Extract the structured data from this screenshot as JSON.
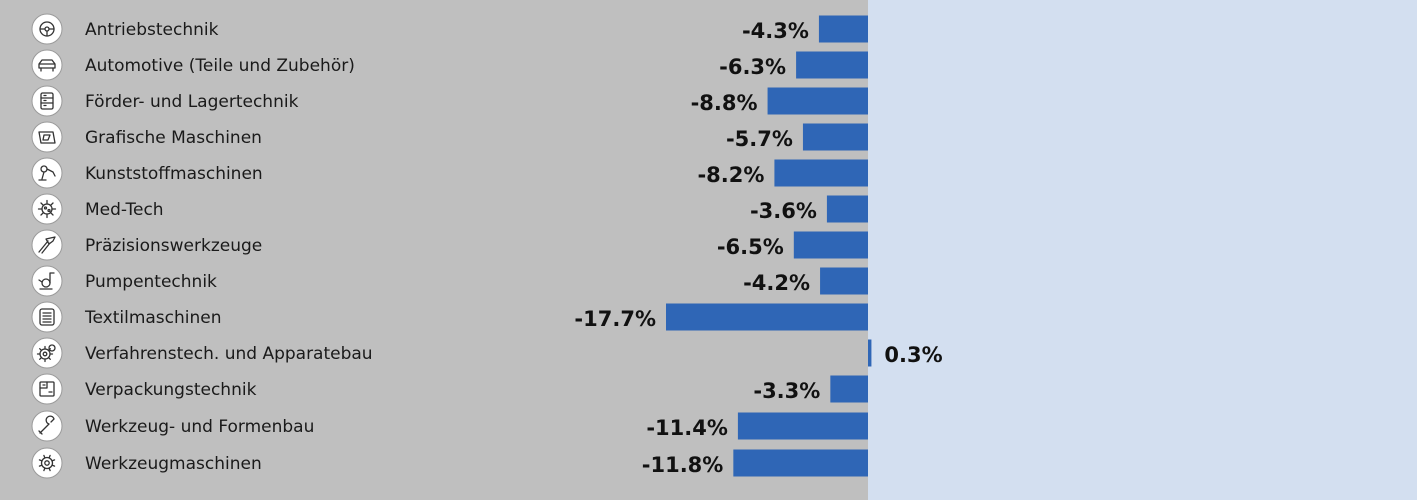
{
  "chart_data": {
    "type": "bar",
    "orientation": "horizontal",
    "categories": [
      "Antriebstechnik",
      "Automotive (Teile und Zubehör)",
      "Förder- und Lagertechnik",
      "Grafische Maschinen",
      "Kunststoffmaschinen",
      "Med-Tech",
      "Präzisionswerkzeuge",
      "Pumpentechnik",
      "Textilmaschinen",
      "Verfahrenstech. und Apparatebau",
      "Verpackungstechnik",
      "Werkzeug- und Formenbau",
      "Werkzeugmaschinen"
    ],
    "values": [
      -4.3,
      -6.3,
      -8.8,
      -5.7,
      -8.2,
      -3.6,
      -6.5,
      -4.2,
      -17.7,
      0.3,
      -3.3,
      -11.4,
      -11.8
    ],
    "value_labels": [
      "-4.3%",
      "-6.3%",
      "-8.8%",
      "-5.7%",
      "-8.2%",
      "-3.6%",
      "-6.5%",
      "-4.2%",
      "-17.7%",
      "0.3%",
      "-3.3%",
      "-11.4%",
      "-11.8%"
    ],
    "icons": [
      "steering-wheel-icon",
      "car-icon",
      "conveyor-icon",
      "printing-press-icon",
      "robot-arm-icon",
      "virus-icon",
      "precision-tool-icon",
      "pump-icon",
      "textile-icon",
      "process-gears-icon",
      "packaging-icon",
      "wrench-icon",
      "gear-icon"
    ],
    "xlim": [
      -17.7,
      0.3
    ],
    "colors": {
      "bar": "#2f66b6",
      "negative_bg": "#bfbfbf",
      "positive_bg": "#d3dff0"
    }
  }
}
